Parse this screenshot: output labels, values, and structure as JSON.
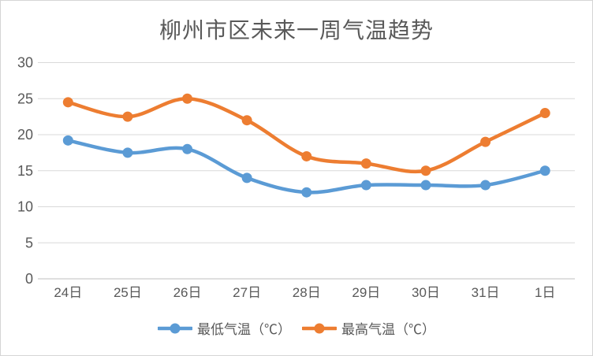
{
  "title": "柳州市区未来一周气温趋势",
  "chart_data": {
    "type": "line",
    "title": "柳州市区未来一周气温趋势",
    "smooth": true,
    "grid": true,
    "legend_position": "bottom",
    "categories": [
      "24日",
      "25日",
      "26日",
      "27日",
      "28日",
      "29日",
      "30日",
      "31日",
      "1日"
    ],
    "series": [
      {
        "id": "min-temp",
        "name": "最低气温（℃）",
        "color": "#5B9BD5",
        "values": [
          19.2,
          17.5,
          18,
          14,
          12,
          13,
          13,
          13,
          15
        ]
      },
      {
        "id": "max-temp",
        "name": "最高气温（℃）",
        "color": "#ED7D31",
        "values": [
          24.5,
          22.5,
          25,
          22,
          17,
          16,
          15,
          19,
          23
        ]
      }
    ],
    "y_axis": {
      "min": 0,
      "max": 30,
      "step": 5,
      "tick_labels": [
        "0",
        "5",
        "10",
        "15",
        "20",
        "25",
        "30"
      ]
    }
  },
  "colors": {
    "text": "#595959",
    "gridline": "#D9D9D9",
    "axis_line": "#BFBFBF",
    "background": "#FFFFFF",
    "border": "#D5D5D5"
  }
}
